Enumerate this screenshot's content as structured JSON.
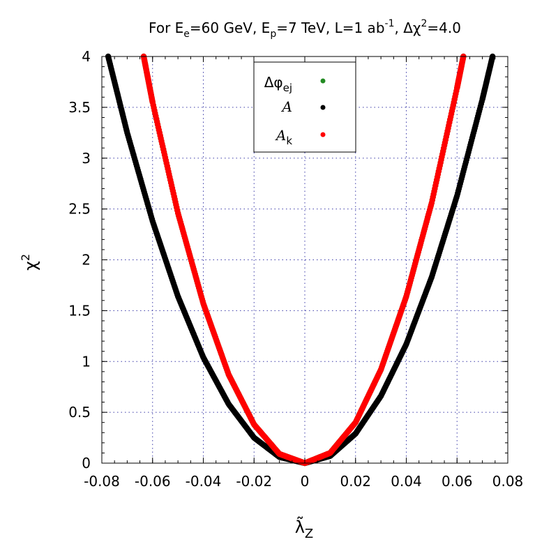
{
  "chart_data": {
    "type": "scatter",
    "title": "For E_e=60 GeV, E_p=7 TeV, L=1 ab^-1, Δχ^2=4.0",
    "title_parts": {
      "p1": "For E",
      "sub1": "e",
      "p2": "=60 GeV, E",
      "sub2": "p",
      "p3": "=7 TeV, L=1 ab",
      "sup3": "-1",
      "p4": ", Δχ",
      "sup4": "2",
      "p5": "=4.0"
    },
    "xlabel": "λ̃_Z",
    "xlabel_main": "λ̃",
    "xlabel_sub": "Z",
    "ylabel": "χ^2",
    "ylabel_main": "χ",
    "ylabel_sup": "2",
    "xlim": [
      -0.08,
      0.08
    ],
    "ylim": [
      0,
      4
    ],
    "x_ticks": [
      -0.08,
      -0.06,
      -0.04,
      -0.02,
      0,
      0.02,
      0.04,
      0.06,
      0.08
    ],
    "x_tick_labels": [
      "-0.08",
      "-0.06",
      "-0.04",
      "-0.02",
      "0",
      "0.02",
      "0.04",
      "0.06",
      "0.08"
    ],
    "y_ticks": [
      0,
      0.5,
      1,
      1.5,
      2,
      2.5,
      3,
      3.5,
      4
    ],
    "y_tick_labels": [
      "0",
      "0.5",
      "1",
      "1.5",
      "2",
      "2.5",
      "3",
      "3.5",
      "4"
    ],
    "grid": true,
    "legend_position": "top-center",
    "series": [
      {
        "name": "Δφ_ej",
        "name_main": "Δφ",
        "name_sub": "ej",
        "color": "#228b22",
        "x_range": [
          -0.0635,
          0.0625
        ],
        "x": [
          -0.0635,
          -0.06,
          -0.05,
          -0.04,
          -0.03,
          -0.02,
          -0.01,
          0,
          0.01,
          0.02,
          0.03,
          0.04,
          0.05,
          0.06,
          0.0625
        ],
        "y": [
          4.0,
          3.55,
          2.46,
          1.57,
          0.87,
          0.38,
          0.09,
          0,
          0.1,
          0.4,
          0.92,
          1.64,
          2.56,
          3.69,
          4.0
        ]
      },
      {
        "name": "A",
        "color": "#000000",
        "x_range": [
          -0.0775,
          0.074
        ],
        "x": [
          -0.0775,
          -0.07,
          -0.06,
          -0.05,
          -0.04,
          -0.03,
          -0.02,
          -0.01,
          0,
          0.01,
          0.02,
          0.03,
          0.04,
          0.05,
          0.06,
          0.07,
          0.074
        ],
        "y": [
          4.0,
          3.25,
          2.38,
          1.64,
          1.04,
          0.58,
          0.25,
          0.06,
          0,
          0.07,
          0.29,
          0.66,
          1.17,
          1.83,
          2.63,
          3.58,
          4.0
        ]
      },
      {
        "name": "A_k",
        "name_main": "A",
        "name_sub": "k",
        "color": "#ff0000",
        "x_range": [
          -0.0635,
          0.0625
        ],
        "x": [
          -0.0635,
          -0.06,
          -0.05,
          -0.04,
          -0.03,
          -0.02,
          -0.01,
          0,
          0.01,
          0.02,
          0.03,
          0.04,
          0.05,
          0.06,
          0.0625
        ],
        "y": [
          4.0,
          3.55,
          2.46,
          1.57,
          0.87,
          0.38,
          0.09,
          0,
          0.1,
          0.4,
          0.92,
          1.64,
          2.56,
          3.69,
          4.0
        ]
      }
    ]
  }
}
